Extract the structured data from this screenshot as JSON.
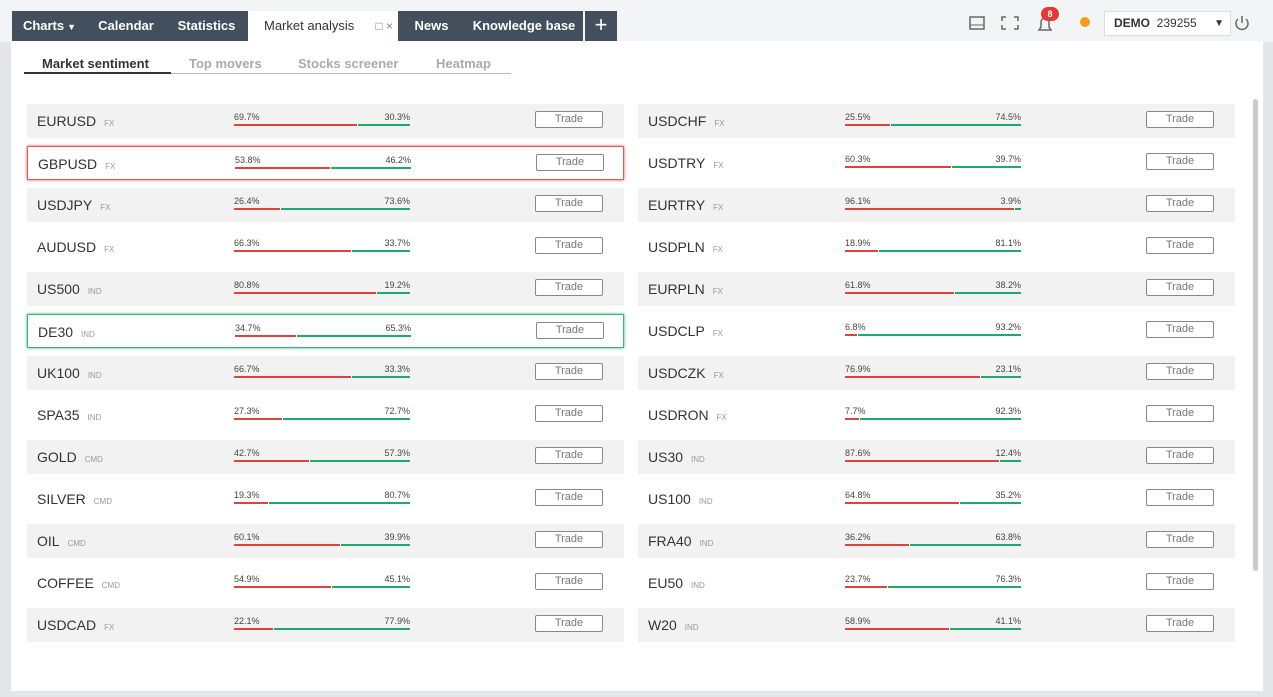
{
  "tabs": [
    "Charts",
    "Calendar",
    "Statistics",
    "Market analysis",
    "News",
    "Knowledge base"
  ],
  "notifications": 8,
  "account": {
    "mode": "DEMO",
    "number": "239255"
  },
  "subtabs": [
    "Market sentiment",
    "Top movers",
    "Stocks screener",
    "Heatmap"
  ],
  "trade_button": "Trade",
  "columns": [
    [
      {
        "symbol": "EURUSD",
        "class": "FX",
        "sell": 69.7,
        "sell_label": "69.7%",
        "buy": 30.3,
        "buy_label": "30.3%"
      },
      {
        "symbol": "GBPUSD",
        "class": "FX",
        "sell": 53.8,
        "sell_label": "53.8%",
        "buy": 46.2,
        "buy_label": "46.2%",
        "border": "#e05a5a"
      },
      {
        "symbol": "USDJPY",
        "class": "FX",
        "sell": 26.4,
        "sell_label": "26.4%",
        "buy": 73.6,
        "buy_label": "73.6%"
      },
      {
        "symbol": "AUDUSD",
        "class": "FX",
        "sell": 66.3,
        "sell_label": "66.3%",
        "buy": 33.7,
        "buy_label": "33.7%"
      },
      {
        "symbol": "US500",
        "class": "IND",
        "sell": 80.8,
        "sell_label": "80.8%",
        "buy": 19.2,
        "buy_label": "19.2%"
      },
      {
        "symbol": "DE30",
        "class": "IND",
        "sell": 34.7,
        "sell_label": "34.7%",
        "buy": 65.3,
        "buy_label": "65.3%",
        "border": "#3cb37a"
      },
      {
        "symbol": "UK100",
        "class": "IND",
        "sell": 66.7,
        "sell_label": "66.7%",
        "buy": 33.3,
        "buy_label": "33.3%"
      },
      {
        "symbol": "SPA35",
        "class": "IND",
        "sell": 27.3,
        "sell_label": "27.3%",
        "buy": 72.7,
        "buy_label": "72.7%"
      },
      {
        "symbol": "GOLD",
        "class": "CMD",
        "sell": 42.7,
        "sell_label": "42.7%",
        "buy": 57.3,
        "buy_label": "57.3%"
      },
      {
        "symbol": "SILVER",
        "class": "CMD",
        "sell": 19.3,
        "sell_label": "19.3%",
        "buy": 80.7,
        "buy_label": "80.7%"
      },
      {
        "symbol": "OIL",
        "class": "CMD",
        "sell": 60.1,
        "sell_label": "60.1%",
        "buy": 39.9,
        "buy_label": "39.9%"
      },
      {
        "symbol": "COFFEE",
        "class": "CMD",
        "sell": 54.9,
        "sell_label": "54.9%",
        "buy": 45.1,
        "buy_label": "45.1%"
      },
      {
        "symbol": "USDCAD",
        "class": "FX",
        "sell": 22.1,
        "sell_label": "22.1%",
        "buy": 77.9,
        "buy_label": "77.9%"
      }
    ],
    [
      {
        "symbol": "USDCHF",
        "class": "FX",
        "sell": 25.5,
        "sell_label": "25.5%",
        "buy": 74.5,
        "buy_label": "74.5%"
      },
      {
        "symbol": "USDTRY",
        "class": "FX",
        "sell": 60.3,
        "sell_label": "60.3%",
        "buy": 39.7,
        "buy_label": "39.7%"
      },
      {
        "symbol": "EURTRY",
        "class": "FX",
        "sell": 96.1,
        "sell_label": "96.1%",
        "buy": 3.9,
        "buy_label": "3.9%"
      },
      {
        "symbol": "USDPLN",
        "class": "FX",
        "sell": 18.9,
        "sell_label": "18.9%",
        "buy": 81.1,
        "buy_label": "81.1%"
      },
      {
        "symbol": "EURPLN",
        "class": "FX",
        "sell": 61.8,
        "sell_label": "61.8%",
        "buy": 38.2,
        "buy_label": "38.2%"
      },
      {
        "symbol": "USDCLP",
        "class": "FX",
        "sell": 6.8,
        "sell_label": "6.8%",
        "buy": 93.2,
        "buy_label": "93.2%"
      },
      {
        "symbol": "USDCZK",
        "class": "FX",
        "sell": 76.9,
        "sell_label": "76.9%",
        "buy": 23.1,
        "buy_label": "23.1%"
      },
      {
        "symbol": "USDRON",
        "class": "FX",
        "sell": 7.7,
        "sell_label": "7.7%",
        "buy": 92.3,
        "buy_label": "92.3%"
      },
      {
        "symbol": "US30",
        "class": "IND",
        "sell": 87.6,
        "sell_label": "87.6%",
        "buy": 12.4,
        "buy_label": "12.4%"
      },
      {
        "symbol": "US100",
        "class": "IND",
        "sell": 64.8,
        "sell_label": "64.8%",
        "buy": 35.2,
        "buy_label": "35.2%"
      },
      {
        "symbol": "FRA40",
        "class": "IND",
        "sell": 36.2,
        "sell_label": "36.2%",
        "buy": 63.8,
        "buy_label": "63.8%"
      },
      {
        "symbol": "EU50",
        "class": "IND",
        "sell": 23.7,
        "sell_label": "23.7%",
        "buy": 76.3,
        "buy_label": "76.3%"
      },
      {
        "symbol": "W20",
        "class": "IND",
        "sell": 58.9,
        "sell_label": "58.9%",
        "buy": 41.1,
        "buy_label": "41.1%"
      }
    ]
  ]
}
